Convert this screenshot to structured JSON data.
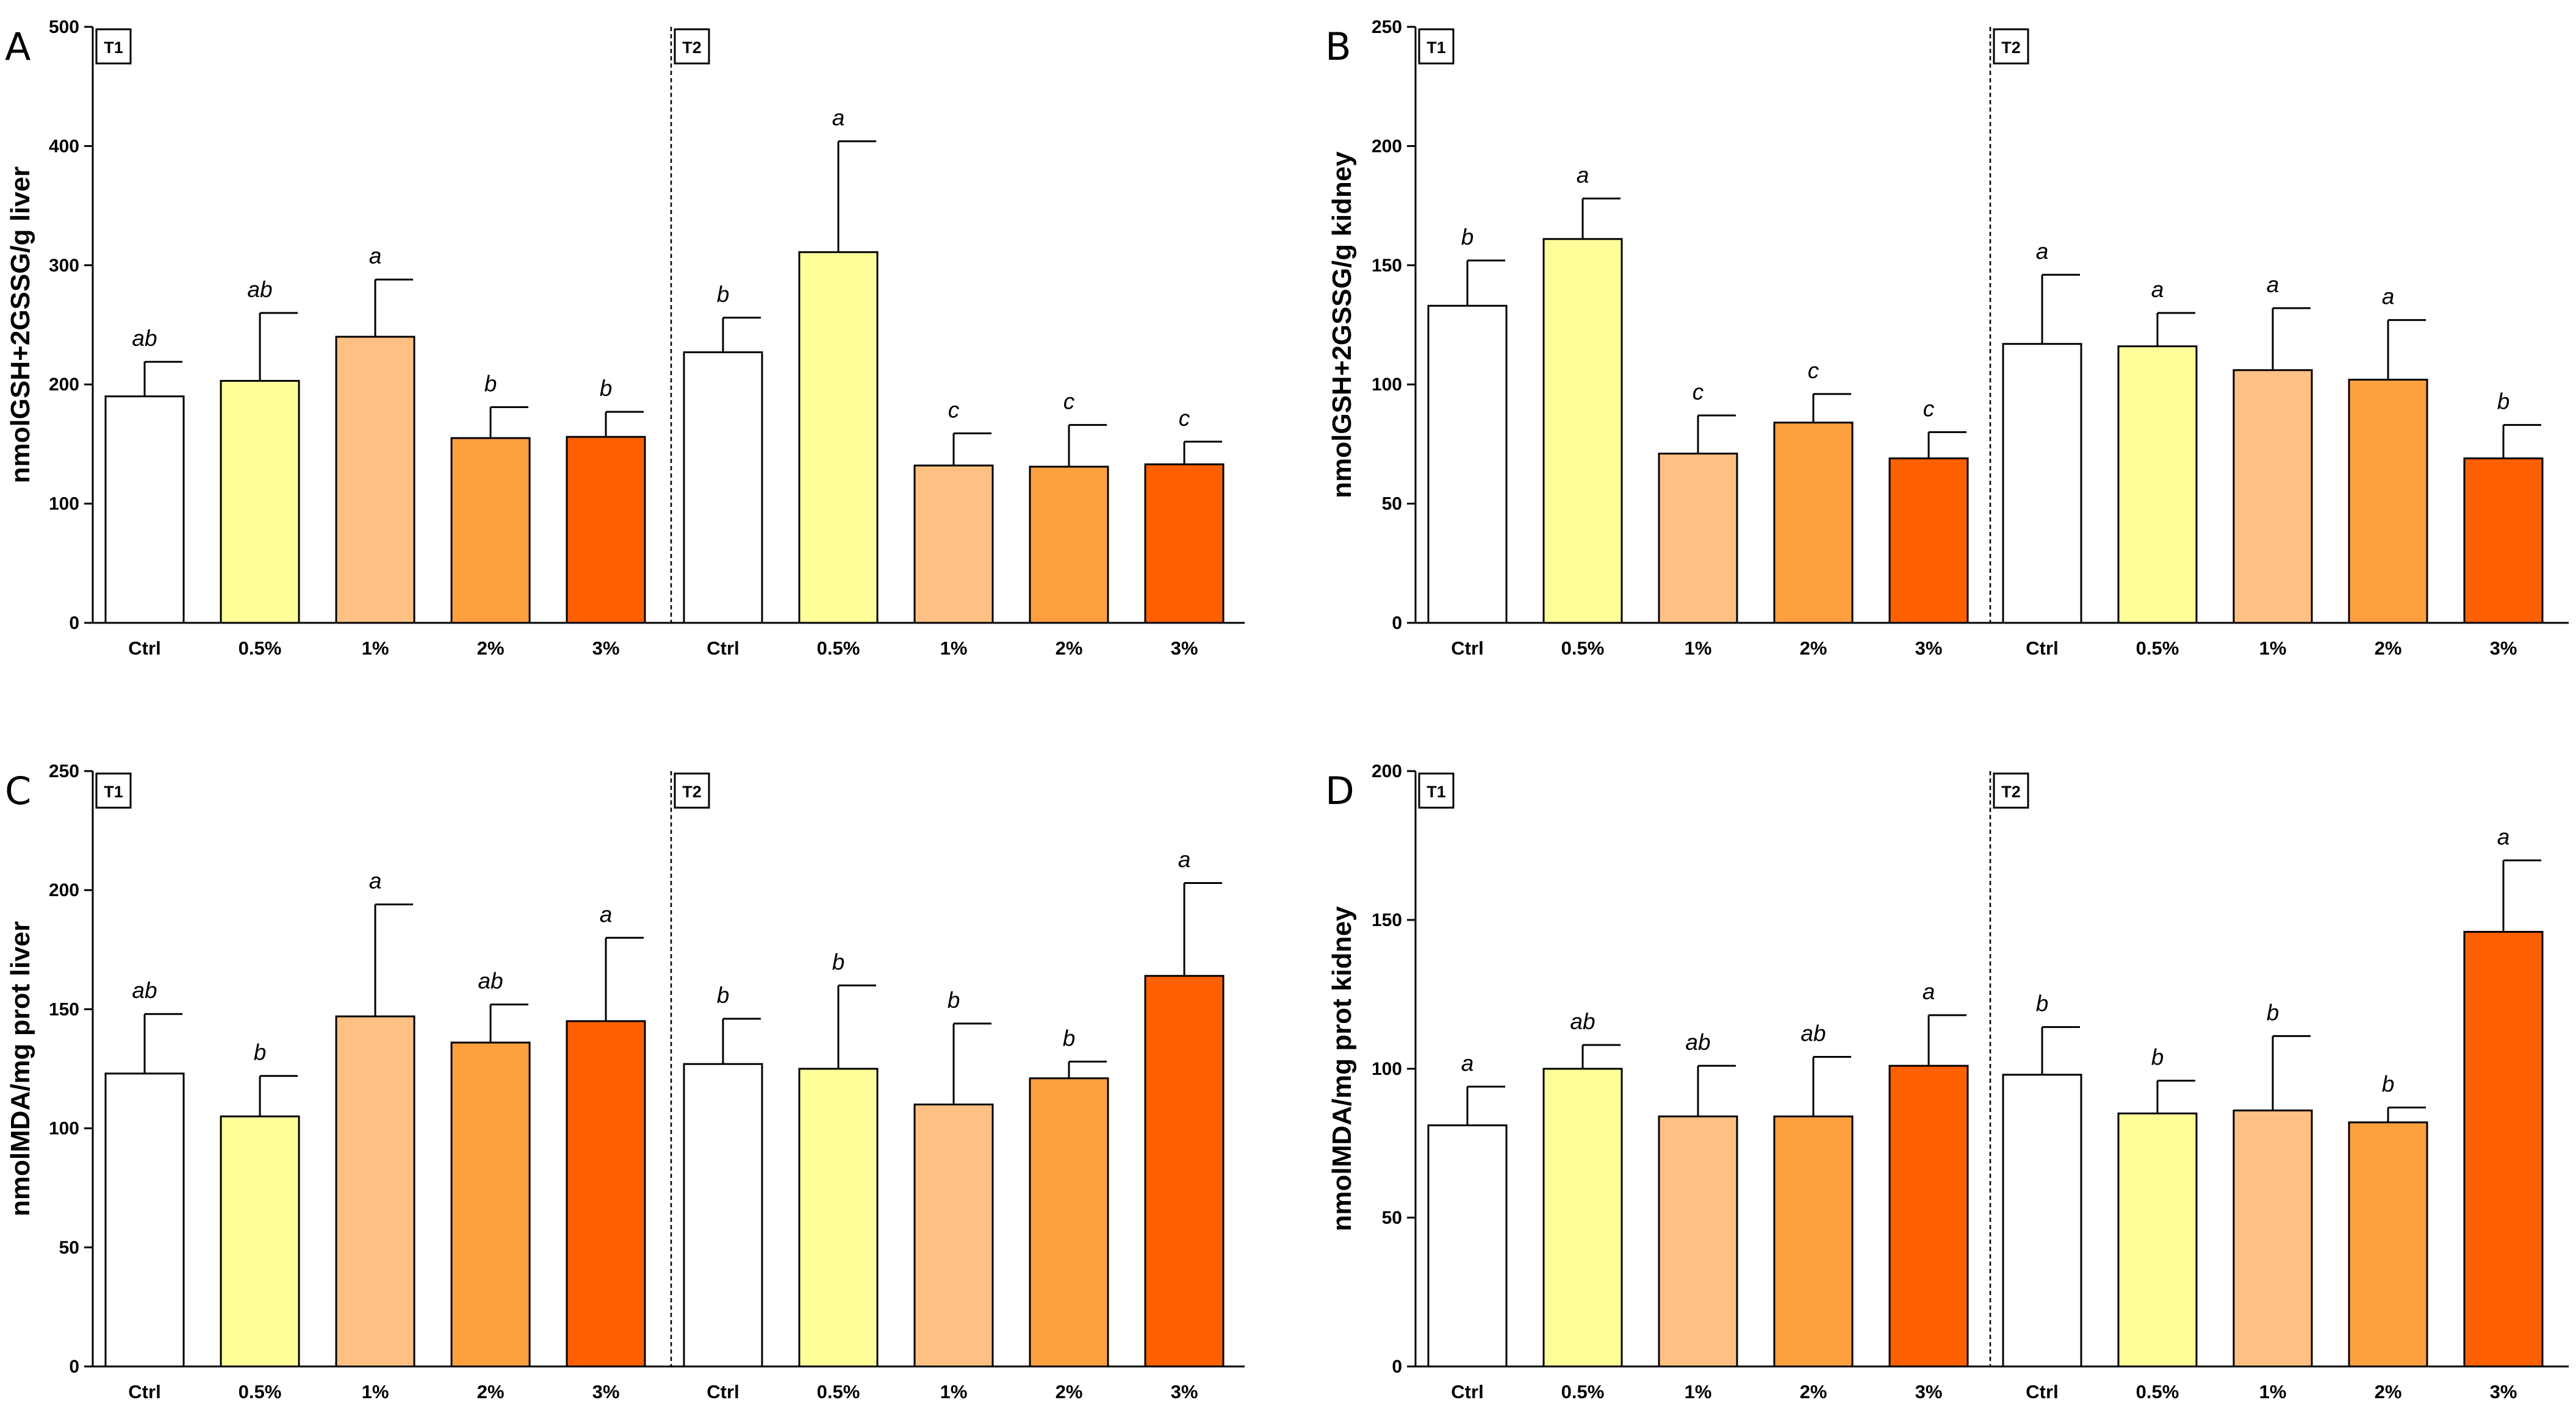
{
  "chart_data": [
    {
      "panel": "A",
      "type": "bar",
      "ylabel": "nmolGSH+2GSSG/g liver",
      "ylim": [
        0,
        500
      ],
      "yticks": [
        0,
        100,
        200,
        300,
        400,
        500
      ],
      "groups": [
        {
          "label": "T1",
          "categories": [
            "Ctrl",
            "0.5%",
            "1%",
            "2%",
            "3%"
          ],
          "values": [
            190,
            203,
            240,
            155,
            156
          ],
          "errors": [
            29,
            57,
            48,
            26,
            21
          ],
          "letters": [
            "ab",
            "ab",
            "a",
            "b",
            "b"
          ]
        },
        {
          "label": "T2",
          "categories": [
            "Ctrl",
            "0.5%",
            "1%",
            "2%",
            "3%"
          ],
          "values": [
            227,
            311,
            132,
            131,
            133
          ],
          "errors": [
            29,
            93,
            27,
            35,
            19
          ],
          "letters": [
            "b",
            "a",
            "c",
            "c",
            "c"
          ]
        }
      ]
    },
    {
      "panel": "B",
      "type": "bar",
      "ylabel": "nmolGSH+2GSSG/g kidney",
      "ylim": [
        0,
        250
      ],
      "yticks": [
        0,
        50,
        100,
        150,
        200,
        250
      ],
      "groups": [
        {
          "label": "T1",
          "categories": [
            "Ctrl",
            "0.5%",
            "1%",
            "2%",
            "3%"
          ],
          "values": [
            133,
            161,
            71,
            84,
            69
          ],
          "errors": [
            19,
            17,
            16,
            12,
            11
          ],
          "letters": [
            "b",
            "a",
            "c",
            "c",
            "c"
          ]
        },
        {
          "label": "T2",
          "categories": [
            "Ctrl",
            "0.5%",
            "1%",
            "2%",
            "3%"
          ],
          "values": [
            117,
            116,
            106,
            102,
            69
          ],
          "errors": [
            29,
            14,
            26,
            25,
            14
          ],
          "letters": [
            "a",
            "a",
            "a",
            "a",
            "b"
          ]
        }
      ]
    },
    {
      "panel": "C",
      "type": "bar",
      "ylabel": "nmolMDA/mg prot liver",
      "ylim": [
        0,
        250
      ],
      "yticks": [
        0,
        50,
        100,
        150,
        200,
        250
      ],
      "groups": [
        {
          "label": "T1",
          "categories": [
            "Ctrl",
            "0.5%",
            "1%",
            "2%",
            "3%"
          ],
          "values": [
            123,
            105,
            147,
            136,
            145
          ],
          "errors": [
            25,
            17,
            47,
            16,
            35
          ],
          "letters": [
            "ab",
            "b",
            "a",
            "ab",
            "a"
          ]
        },
        {
          "label": "T2",
          "categories": [
            "Ctrl",
            "0.5%",
            "1%",
            "2%",
            "3%"
          ],
          "values": [
            127,
            125,
            110,
            121,
            164
          ],
          "errors": [
            19,
            35,
            34,
            7,
            39
          ],
          "letters": [
            "b",
            "b",
            "b",
            "b",
            "a"
          ]
        }
      ]
    },
    {
      "panel": "D",
      "type": "bar",
      "ylabel": "nmolMDA/mg prot kidney",
      "ylim": [
        0,
        200
      ],
      "yticks": [
        0,
        50,
        100,
        150,
        200
      ],
      "groups": [
        {
          "label": "T1",
          "categories": [
            "Ctrl",
            "0.5%",
            "1%",
            "2%",
            "3%"
          ],
          "values": [
            81,
            100,
            84,
            84,
            101
          ],
          "errors": [
            13,
            8,
            17,
            20,
            17
          ],
          "letters": [
            "a",
            "ab",
            "ab",
            "ab",
            "a"
          ]
        },
        {
          "label": "T2",
          "categories": [
            "Ctrl",
            "0.5%",
            "1%",
            "2%",
            "3%"
          ],
          "values": [
            98,
            85,
            86,
            82,
            146
          ],
          "errors": [
            16,
            11,
            25,
            5,
            24
          ],
          "letters": [
            "b",
            "b",
            "b",
            "b",
            "a"
          ]
        }
      ]
    }
  ],
  "colors": {
    "bars": [
      "#ffffff",
      "#ffff99",
      "#ffc183",
      "#ffa040",
      "#ff6000"
    ],
    "stroke": "#000000"
  }
}
